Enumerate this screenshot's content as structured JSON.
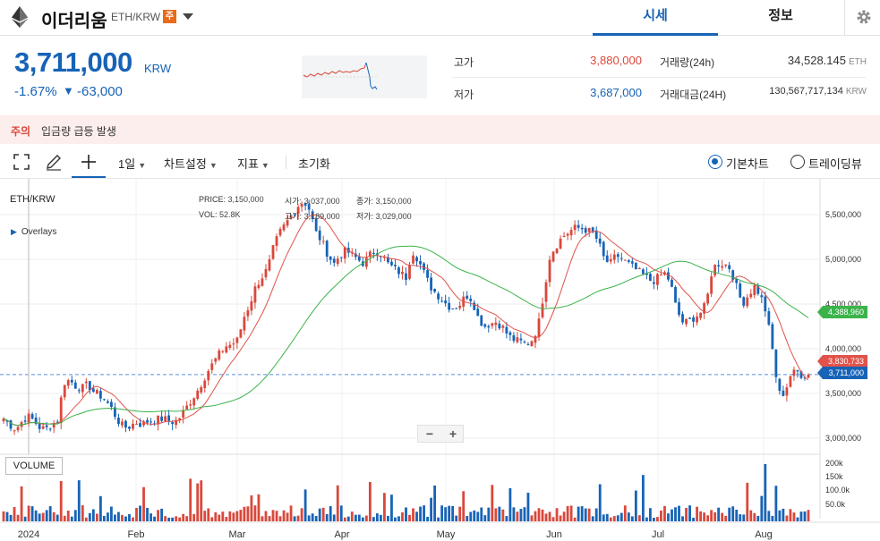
{
  "header": {
    "coin_name": "이더리움",
    "pair": "ETH/KRW",
    "warning_badge": "주",
    "tabs": [
      {
        "label": "시세",
        "active": true
      },
      {
        "label": "정보",
        "active": false
      }
    ]
  },
  "summary": {
    "price": "3,711,000",
    "unit": "KRW",
    "change_rate": "-1.67%",
    "change_arrow": "▼",
    "change_amount": "-63,000",
    "stats": {
      "high_label": "고가",
      "high_value": "3,880,000",
      "low_label": "저가",
      "low_value": "3,687,000",
      "volume_label": "거래량(24h)",
      "volume_value": "34,528.145",
      "volume_unit": "ETH",
      "amount_label": "거래대금(24H)",
      "amount_value": "130,567,717,134",
      "amount_unit": "KRW"
    },
    "colors": {
      "up": "#d9483b",
      "down": "#1763b6"
    }
  },
  "warning_bar": {
    "label": "주의",
    "text": "입금량 급등 발생"
  },
  "toolbar": {
    "interval": "1일",
    "chart_settings": "차트설정",
    "indicators": "지표",
    "reset": "초기화",
    "view_basic": "기본차트",
    "view_tradingview": "트레이딩뷰",
    "selected_view": "기본차트"
  },
  "chart": {
    "pair_label": "ETH/KRW",
    "overlays_label": "Overlays",
    "legend": {
      "price_label": "PRICE:",
      "price_value": "3,150,000",
      "open_label": "시가:",
      "open_value": "3,037,000",
      "close_label": "종가:",
      "close_value": "3,150,000",
      "vol_label": "VOL:",
      "vol_value": "52.8K",
      "high_label": "고가:",
      "high_value": "3,189,000",
      "low_label": "저가:",
      "low_value": "3,029,000"
    },
    "price_axis": [
      "5,500,000",
      "5,000,000",
      "4,500,000",
      "4,000,000",
      "3,500,000",
      "3,000,000"
    ],
    "volume_axis": [
      "200k",
      "150k",
      "100.0k",
      "50.0k"
    ],
    "x_axis": [
      "2024",
      "Feb",
      "Mar",
      "Apr",
      "May",
      "Jun",
      "Jul",
      "Aug"
    ],
    "tags": {
      "ma_long": "4,388,960",
      "ma_short": "3,830,733",
      "current": "3,711,000"
    },
    "volume_label": "VOLUME",
    "ma_colors": {
      "short": "#e0524a",
      "long": "#3bb34a"
    }
  },
  "chart_data": {
    "type": "candlestick",
    "pair": "ETH/KRW",
    "x_ticks": [
      "2024",
      "Feb",
      "Mar",
      "Apr",
      "May",
      "Jun",
      "Jul",
      "Aug"
    ],
    "y_ticks": [
      5500000,
      5000000,
      4500000,
      4000000,
      3500000,
      3000000
    ],
    "ylim": [
      2850000,
      5800000
    ],
    "close_path": [
      3220000,
      3150000,
      3100000,
      3180000,
      3250000,
      3200000,
      3120000,
      3100000,
      3150000,
      3200000,
      3620000,
      3650000,
      3580000,
      3560000,
      3600000,
      3520000,
      3480000,
      3420000,
      3330000,
      3200000,
      3120000,
      3130000,
      3180000,
      3150000,
      3190000,
      3200000,
      3220000,
      3210000,
      3180000,
      3200000,
      3300000,
      3400000,
      3500000,
      3620000,
      3750000,
      3850000,
      3950000,
      4030000,
      4050000,
      4100000,
      4350000,
      4500000,
      4700000,
      4800000,
      4900000,
      5150000,
      5300000,
      5400000,
      5500000,
      5600000,
      5650000,
      5550000,
      5300000,
      5200000,
      5050000,
      4950000,
      5050000,
      5100000,
      5050000,
      5000000,
      4950000,
      5050000,
      5100000,
      5050000,
      4950000,
      4900000,
      4850000,
      4800000,
      5100000,
      5000000,
      4850000,
      4700000,
      4620000,
      4550000,
      4480000,
      4450000,
      4500000,
      4600000,
      4550000,
      4350000,
      4250000,
      4280000,
      4300000,
      4250000,
      4150000,
      4100000,
      4080000,
      4050000,
      4100000,
      4250000,
      4650000,
      5050000,
      5150000,
      5250000,
      5300000,
      5350000,
      5350000,
      5330000,
      5300000,
      5200000,
      5000000,
      4950000,
      5050000,
      5000000,
      4950000,
      4900000,
      4850000,
      4800000,
      4750000,
      4800000,
      4850000,
      4750000,
      4450000,
      4300000,
      4300000,
      4350000,
      4400000,
      4500000,
      4900000,
      4950000,
      4950000,
      4900000,
      4700000,
      4500000,
      4600000,
      4700000,
      4600000,
      4400000,
      4000000,
      3500000,
      3500000,
      3700000,
      3750000,
      3700000,
      3711000
    ],
    "ma_short_last": 3830733,
    "ma_long_last": 4388960,
    "current": 3711000
  }
}
